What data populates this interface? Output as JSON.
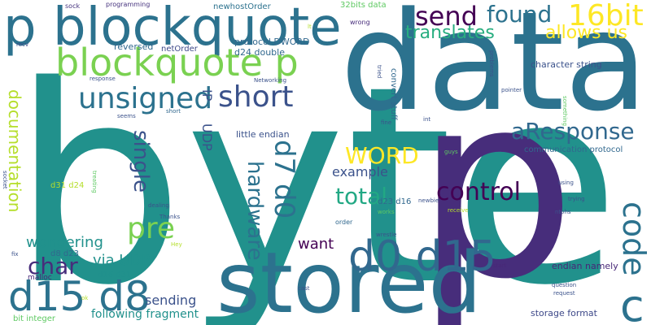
{
  "word_cloud": {
    "words": [
      {
        "text": "byte",
        "color": "#21918c"
      },
      {
        "text": "data",
        "color": "#2c728e"
      },
      {
        "text": "p",
        "color": "#472d7b"
      },
      {
        "text": "stored",
        "color": "#2c728e"
      },
      {
        "text": "p blockquote",
        "color": "#2c728e"
      },
      {
        "text": "blockquote p",
        "color": "#7ad151"
      },
      {
        "text": "d0 d15",
        "color": "#31688e"
      },
      {
        "text": "d15 d8",
        "color": "#2c728e"
      },
      {
        "text": "code",
        "color": "#2c728e"
      },
      {
        "text": "unsigned",
        "color": "#2c728e"
      },
      {
        "text": "short",
        "color": "#3b528b"
      },
      {
        "text": "16bit",
        "color": "#fde725"
      },
      {
        "text": "send",
        "color": "#440154"
      },
      {
        "text": "found",
        "color": "#2c728e"
      },
      {
        "text": "translates",
        "color": "#28ae80"
      },
      {
        "text": "allows us",
        "color": "#fde725"
      },
      {
        "text": "aResponse",
        "color": "#31688e"
      },
      {
        "text": "WORD",
        "color": "#fde725"
      },
      {
        "text": "control",
        "color": "#440154"
      },
      {
        "text": "total",
        "color": "#22a884"
      },
      {
        "text": "pre",
        "color": "#7ad151"
      },
      {
        "text": "char",
        "color": "#472d7b"
      },
      {
        "text": "d7 d0",
        "color": "#2c728e"
      },
      {
        "text": "hardware",
        "color": "#2c728e"
      },
      {
        "text": "single",
        "color": "#3b528b"
      },
      {
        "text": "documentation",
        "color": "#b5de2b"
      },
      {
        "text": "c",
        "color": "#2c728e"
      },
      {
        "text": "example",
        "color": "#3b528b"
      },
      {
        "text": "wondering",
        "color": "#21918c"
      },
      {
        "text": "want",
        "color": "#440154"
      },
      {
        "text": "via UDP",
        "color": "#21918c"
      },
      {
        "text": "sending",
        "color": "#3b528b"
      },
      {
        "text": "following fragment",
        "color": "#21918c"
      },
      {
        "text": "UDP",
        "color": "#3b528b"
      },
      {
        "text": "IP",
        "color": "#3b528b"
      },
      {
        "text": "endian namely",
        "color": "#482878"
      },
      {
        "text": "storage format",
        "color": "#3e4989"
      },
      {
        "text": "communication protocol",
        "color": "#31688e"
      },
      {
        "text": "character string",
        "color": "#3b528b"
      },
      {
        "text": "little endian",
        "color": "#3b528b"
      },
      {
        "text": "protocol DWORD",
        "color": "#31688e"
      },
      {
        "text": "d24 double",
        "color": "#31688e"
      },
      {
        "text": "reversed",
        "color": "#31688e"
      },
      {
        "text": "netOrder",
        "color": "#3e4989"
      },
      {
        "text": "32bits data",
        "color": "#5ec962"
      },
      {
        "text": "newhostOrder",
        "color": "#2c728e"
      },
      {
        "text": "convert stuff",
        "color": "#31688e"
      },
      {
        "text": "programming",
        "color": "#46337e"
      },
      {
        "text": "sock",
        "color": "#46337e"
      },
      {
        "text": "wrong",
        "color": "#472d7b"
      },
      {
        "text": "d31 d24",
        "color": "#b5de2b"
      },
      {
        "text": "d8 d23",
        "color": "#31688e"
      },
      {
        "text": "d16 d31",
        "color": "#21918c"
      },
      {
        "text": "d23 d16",
        "color": "#31688e"
      },
      {
        "text": "bit integer",
        "color": "#5ec962"
      },
      {
        "text": "malloc",
        "color": "#482878"
      },
      {
        "text": "recv",
        "color": "#3e4989"
      },
      {
        "text": "response",
        "color": "#3b528b"
      },
      {
        "text": "seems",
        "color": "#3b528b"
      },
      {
        "text": "short",
        "color": "#31688e"
      },
      {
        "text": "int",
        "color": "#3b528b"
      },
      {
        "text": "fine",
        "color": "#3b528b"
      },
      {
        "text": "Networking",
        "color": "#3b528b"
      },
      {
        "text": "order",
        "color": "#31688e"
      },
      {
        "text": "works",
        "color": "#5ec962"
      },
      {
        "text": "wrestle",
        "color": "#3b528b"
      },
      {
        "text": "cast",
        "color": "#3b528b"
      },
      {
        "text": "start",
        "color": "#482878"
      },
      {
        "text": "question",
        "color": "#3b528b"
      },
      {
        "text": "request",
        "color": "#3b528b"
      },
      {
        "text": "pointer",
        "color": "#3b528b"
      },
      {
        "text": "using",
        "color": "#3b528b"
      },
      {
        "text": "trying",
        "color": "#3b528b"
      },
      {
        "text": "ntohs",
        "color": "#3b528b"
      },
      {
        "text": "guys",
        "color": "#5ec962"
      },
      {
        "text": "newbie",
        "color": "#3b528b"
      },
      {
        "text": "receive",
        "color": "#b5de2b"
      },
      {
        "text": "dealing",
        "color": "#3b528b"
      },
      {
        "text": "Thanks",
        "color": "#3b528b"
      },
      {
        "text": "Hey",
        "color": "#b5de2b"
      },
      {
        "text": "ok",
        "color": "#b5de2b"
      },
      {
        "text": "fix",
        "color": "#3b528b"
      },
      {
        "text": "socket",
        "color": "#3b528b"
      },
      {
        "text": "treating",
        "color": "#5ec962"
      },
      {
        "text": "tried",
        "color": "#3b528b"
      },
      {
        "text": "problems",
        "color": "#3b528b"
      },
      {
        "text": "something",
        "color": "#5ec962"
      },
      {
        "text": "lt",
        "color": "#b5de2b"
      }
    ]
  }
}
